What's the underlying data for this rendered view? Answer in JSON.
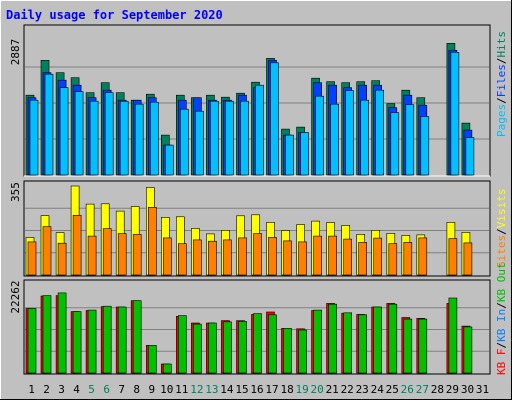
{
  "title": "Daily usage for September 2020",
  "colors": {
    "background": "#C0C0C0",
    "title": "#0000FF",
    "hits": "#00805C",
    "files": "#0040FF",
    "pages": "#00C0FF",
    "visits": "#FFFF00",
    "sites": "#FF8000",
    "kbin": "#0080FF",
    "kbout": "#00C000",
    "kbf": "#FF0000",
    "grid": "#808080",
    "weekend_label": "#00805C"
  },
  "legend": {
    "top": [
      {
        "label": "Hits",
        "key": "hits"
      },
      {
        "label": "Files",
        "key": "files"
      },
      {
        "label": "Pages",
        "key": "pages"
      }
    ],
    "middle": [
      {
        "label": "Visits",
        "key": "visits"
      },
      {
        "label": "Sites",
        "key": "sites"
      }
    ],
    "bottom": [
      {
        "label": "KB Out",
        "key": "kbout"
      },
      {
        "label": "KB In",
        "key": "kbin"
      },
      {
        "label": "KB F",
        "key": "kbf"
      }
    ],
    "separator": "/"
  },
  "chart_data": {
    "type": "bar",
    "title": "Daily usage for September 2020",
    "days": [
      "1",
      "2",
      "3",
      "4",
      "5",
      "6",
      "7",
      "8",
      "9",
      "10",
      "11",
      "12",
      "13",
      "14",
      "15",
      "16",
      "17",
      "18",
      "19",
      "20",
      "21",
      "22",
      "23",
      "24",
      "25",
      "26",
      "27",
      "28",
      "29",
      "30",
      "31"
    ],
    "weekend_days": [
      "5",
      "6",
      "12",
      "13",
      "19",
      "20",
      "26",
      "27"
    ],
    "panels": [
      {
        "name": "usage",
        "ymax": 2887,
        "ymax_label": "2887",
        "series": [
          {
            "name": "Hits",
            "values": [
              1600,
              2300,
              2050,
              1950,
              1650,
              1850,
              1650,
              1500,
              1620,
              800,
              1600,
              1550,
              1600,
              1560,
              1640,
              1860,
              2340,
              920,
              960,
              1940,
              1870,
              1850,
              1870,
              1890,
              1430,
              1700,
              1550,
              0,
              2640,
              1040,
              0
            ]
          },
          {
            "name": "Files",
            "values": [
              1550,
              2050,
              1900,
              1800,
              1550,
              1700,
              1500,
              1500,
              1550,
              600,
              1500,
              1550,
              1500,
              1500,
              1600,
              1750,
              2300,
              800,
              850,
              1850,
              1800,
              1750,
              1800,
              1800,
              1350,
              1600,
              1400,
              0,
              2500,
              900,
              0
            ]
          },
          {
            "name": "Pages",
            "values": [
              1500,
              2020,
              1750,
              1670,
              1480,
              1650,
              1480,
              1420,
              1460,
              600,
              1320,
              1280,
              1480,
              1480,
              1480,
              1800,
              2250,
              800,
              850,
              1580,
              1420,
              1690,
              1500,
              1700,
              1250,
              1410,
              1170,
              0,
              2460,
              750,
              0
            ]
          }
        ]
      },
      {
        "name": "visitors",
        "ymax": 355,
        "ymax_label": "355",
        "series": [
          {
            "name": "Visits",
            "values": [
              150,
              237,
              169,
              355,
              283,
              284,
              255,
              273,
              349,
              230,
              232,
              186,
              164,
              178,
              236,
              240,
              210,
              177,
              201,
              215,
              209,
              198,
              162,
              178,
              166,
              158,
              160,
              0,
              210,
              170,
              0
            ]
          },
          {
            "name": "Sites",
            "values": [
              132,
              193,
              127,
              238,
              155,
              185,
              165,
              162,
              270,
              148,
              125,
              140,
              135,
              140,
              148,
              165,
              150,
              136,
              132,
              155,
              155,
              143,
              130,
              147,
              125,
              130,
              148,
              0,
              145,
              128,
              0
            ]
          }
        ]
      },
      {
        "name": "volume",
        "ymax": 22262,
        "ymax_label": "22262",
        "series": [
          {
            "name": "KB F",
            "values": [
              16500,
              19700,
              19800,
              15700,
              16000,
              17000,
              16900,
              18500,
              7100,
              2300,
              14500,
              12800,
              12800,
              13400,
              13400,
              15000,
              15600,
              11400,
              11300,
              16000,
              17800,
              15300,
              15000,
              16900,
              17800,
              14200,
              14000,
              0,
              17800,
              12000,
              0
            ]
          },
          {
            "name": "KB Out",
            "values": [
              16500,
              19800,
              20500,
              15700,
              16100,
              17100,
              16900,
              18500,
              7100,
              2300,
              14700,
              12500,
              12800,
              13100,
              13200,
              15200,
              14900,
              11400,
              11000,
              16100,
              17600,
              15400,
              14900,
              16900,
              17600,
              13800,
              13800,
              0,
              19200,
              11800,
              0
            ]
          }
        ]
      }
    ]
  }
}
